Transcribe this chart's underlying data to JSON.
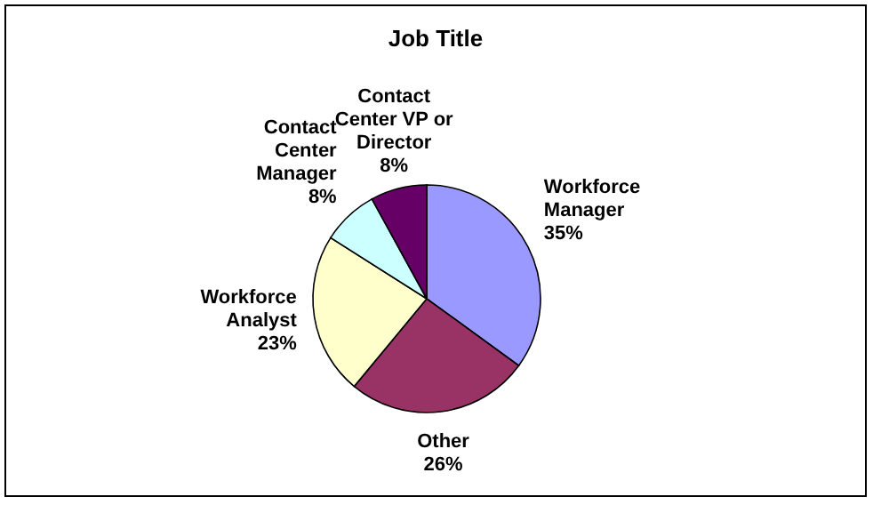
{
  "chart_data": {
    "type": "pie",
    "title": "Job Title",
    "categories": [
      "Workforce Manager",
      "Other",
      "Workforce Analyst",
      "Contact Center Manager",
      "Contact Center VP or Director"
    ],
    "values": [
      35,
      26,
      23,
      8,
      8
    ],
    "colors": [
      "#9999ff",
      "#993366",
      "#ffffcc",
      "#ccffff",
      "#660066"
    ],
    "value_labels": [
      "35%",
      "26%",
      "23%",
      "8%",
      "8%"
    ]
  }
}
